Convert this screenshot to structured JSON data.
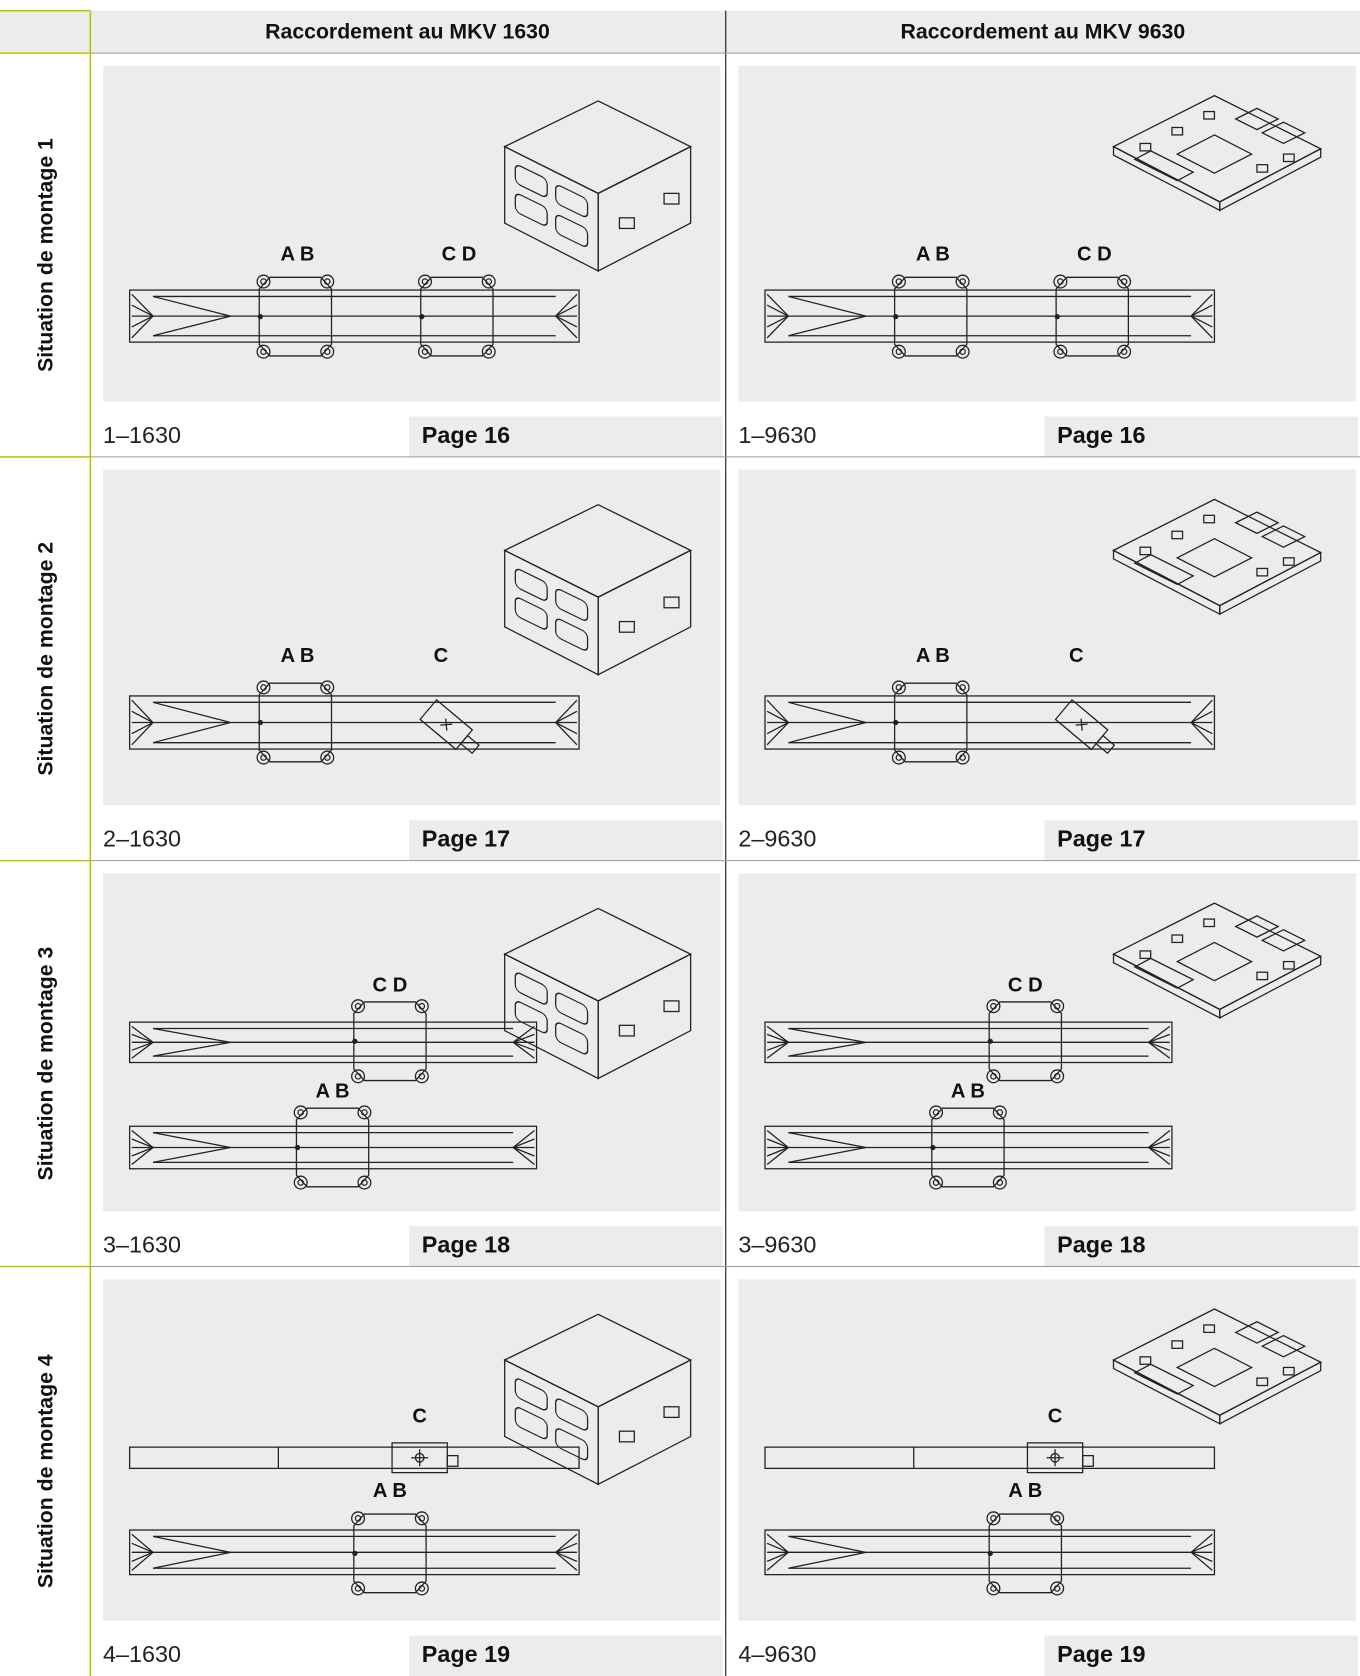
{
  "header": {
    "columns": [
      "Raccordement au MKV 1630",
      "Raccordement au MKV 9630"
    ]
  },
  "rows": [
    {
      "label": "Situation de montage 1",
      "cells": [
        {
          "code": "1–1630",
          "page": "Page 16",
          "labels": [
            "A B",
            "C D"
          ]
        },
        {
          "code": "1–9630",
          "page": "Page 16",
          "labels": [
            "A B",
            "C D"
          ]
        }
      ]
    },
    {
      "label": "Situation de montage 2",
      "cells": [
        {
          "code": "2–1630",
          "page": "Page 17",
          "labels": [
            "A B",
            "C"
          ]
        },
        {
          "code": "2–9630",
          "page": "Page 17",
          "labels": [
            "A B",
            "C"
          ]
        }
      ]
    },
    {
      "label": "Situation de montage 3",
      "cells": [
        {
          "code": "3–1630",
          "page": "Page 18",
          "labels": [
            "C D",
            "A B"
          ]
        },
        {
          "code": "3–9630",
          "page": "Page 18",
          "labels": [
            "C D",
            "A B"
          ]
        }
      ]
    },
    {
      "label": "Situation de montage 4",
      "cells": [
        {
          "code": "4–1630",
          "page": "Page 19",
          "labels": [
            "C",
            "A B"
          ]
        },
        {
          "code": "4–9630",
          "page": "Page 19",
          "labels": [
            "C",
            "A B"
          ]
        }
      ]
    }
  ]
}
